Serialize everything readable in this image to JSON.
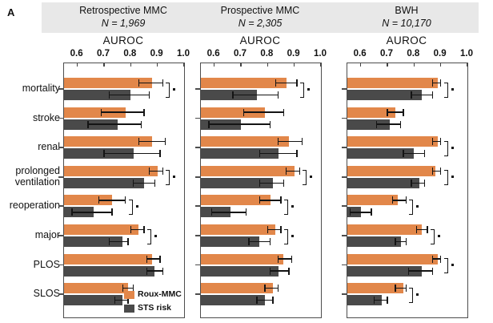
{
  "figure": {
    "panel_label": "A"
  },
  "chart_data": {
    "type": "bar",
    "orientation": "horizontal",
    "xlabel": "AUROC",
    "xlim": [
      0.55,
      1.0
    ],
    "x_ticks": [
      0.6,
      0.7,
      0.8,
      0.9,
      1.0
    ],
    "grid": false,
    "error_bars": true,
    "sig_marker": "*",
    "categories": [
      "mortality",
      "stroke",
      "renal",
      "prolonged ventilation",
      "reoperation",
      "major",
      "PLOS",
      "SLOS"
    ],
    "series_names": [
      "Roux-MMC",
      "STS risk"
    ],
    "series_colors": [
      "#E2874A",
      "#4A4A4A"
    ],
    "legend_position": "bottom-right of first panel",
    "panels": [
      {
        "title": "Retrospective MMC",
        "n_label": "N = 1,969",
        "series": [
          {
            "name": "Roux-MMC",
            "values": [
              0.88,
              0.78,
              0.88,
              0.9,
              0.73,
              0.83,
              0.88,
              0.79
            ],
            "err_lo": [
              0.83,
              0.69,
              0.83,
              0.87,
              0.68,
              0.8,
              0.86,
              0.77
            ],
            "err_hi": [
              0.92,
              0.85,
              0.93,
              0.92,
              0.78,
              0.85,
              0.91,
              0.81
            ]
          },
          {
            "name": "STS risk",
            "values": [
              0.8,
              0.75,
              0.81,
              0.85,
              0.66,
              0.77,
              0.89,
              0.77
            ],
            "err_lo": [
              0.72,
              0.64,
              0.7,
              0.81,
              0.58,
              0.72,
              0.86,
              0.74
            ],
            "err_hi": [
              0.87,
              0.84,
              0.91,
              0.89,
              0.73,
              0.79,
              0.92,
              0.79
            ]
          }
        ],
        "significant": [
          true,
          false,
          false,
          true,
          true,
          true,
          false,
          false
        ]
      },
      {
        "title": "Prospective MMC",
        "n_label": "N = 2,305",
        "series": [
          {
            "name": "Roux-MMC",
            "values": [
              0.87,
              0.79,
              0.88,
              0.9,
              0.81,
              0.83,
              0.86,
              0.82
            ],
            "err_lo": [
              0.83,
              0.71,
              0.84,
              0.87,
              0.77,
              0.8,
              0.84,
              0.79
            ],
            "err_hi": [
              0.91,
              0.86,
              0.93,
              0.92,
              0.85,
              0.85,
              0.89,
              0.84
            ]
          },
          {
            "name": "STS risk",
            "values": [
              0.76,
              0.7,
              0.84,
              0.82,
              0.66,
              0.77,
              0.84,
              0.79
            ],
            "err_lo": [
              0.67,
              0.58,
              0.77,
              0.77,
              0.59,
              0.73,
              0.81,
              0.76
            ],
            "err_hi": [
              0.84,
              0.81,
              0.91,
              0.86,
              0.72,
              0.81,
              0.88,
              0.82
            ]
          }
        ],
        "significant": [
          true,
          false,
          false,
          true,
          true,
          true,
          false,
          false
        ]
      },
      {
        "title": "BWH",
        "n_label": "N = 10,170",
        "series": [
          {
            "name": "Roux-MMC",
            "values": [
              0.89,
              0.73,
              0.89,
              0.88,
              0.74,
              0.83,
              0.89,
              0.76
            ],
            "err_lo": [
              0.87,
              0.7,
              0.87,
              0.87,
              0.72,
              0.81,
              0.87,
              0.73
            ],
            "err_hi": [
              0.9,
              0.76,
              0.9,
              0.9,
              0.77,
              0.85,
              0.9,
              0.77
            ]
          },
          {
            "name": "STS risk",
            "values": [
              0.83,
              0.71,
              0.8,
              0.82,
              0.6,
              0.75,
              0.83,
              0.68
            ],
            "err_lo": [
              0.79,
              0.66,
              0.76,
              0.79,
              0.56,
              0.73,
              0.78,
              0.65
            ],
            "err_hi": [
              0.87,
              0.75,
              0.84,
              0.84,
              0.64,
              0.77,
              0.87,
              0.7
            ]
          }
        ],
        "significant": [
          true,
          false,
          true,
          true,
          true,
          true,
          true,
          true
        ]
      }
    ]
  }
}
